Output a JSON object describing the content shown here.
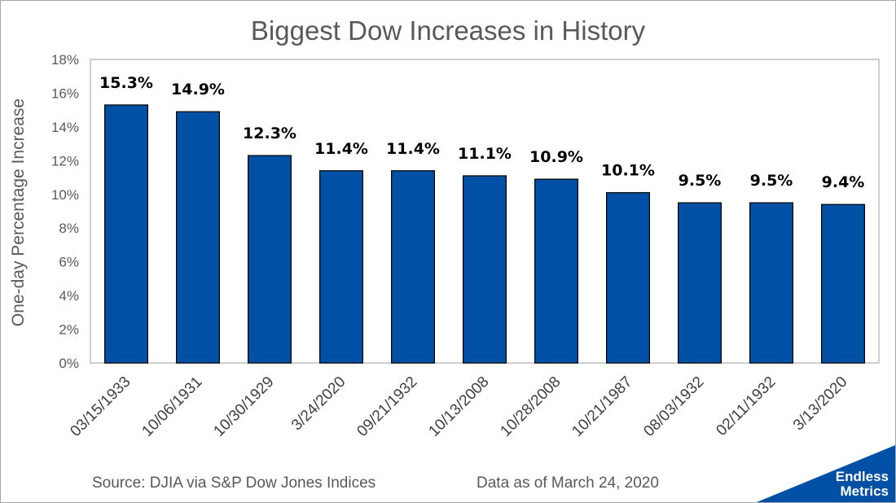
{
  "chart_data": {
    "type": "bar",
    "title": "Biggest Dow Increases in History",
    "xlabel": "",
    "ylabel": "One-day Percentage Increase",
    "ylim": [
      0,
      18
    ],
    "yticks": [
      "0%",
      "2%",
      "4%",
      "6%",
      "8%",
      "10%",
      "12%",
      "14%",
      "16%",
      "18%"
    ],
    "categories": [
      "03/15/1933",
      "10/06/1931",
      "10/30/1929",
      "3/24/2020",
      "09/21/1932",
      "10/13/2008",
      "10/28/2008",
      "10/21/1987",
      "08/03/1932",
      "02/11/1932",
      "3/13/2020"
    ],
    "values": [
      15.3,
      14.9,
      12.3,
      11.4,
      11.4,
      11.1,
      10.9,
      10.1,
      9.5,
      9.5,
      9.4
    ],
    "data_labels": [
      "15.3%",
      "14.9%",
      "12.3%",
      "11.4%",
      "11.4%",
      "11.1%",
      "10.9%",
      "10.1%",
      "9.5%",
      "9.5%",
      "9.4%"
    ],
    "bar_color": "#0050a5",
    "grid": false,
    "legend": "none"
  },
  "footer": {
    "source": "Source: DJIA via S&P Dow Jones Indices",
    "as_of": "Data as of March 24, 2020"
  },
  "logo": {
    "line1": "Endless",
    "line2": "Metrics",
    "color": "#0050a5"
  }
}
